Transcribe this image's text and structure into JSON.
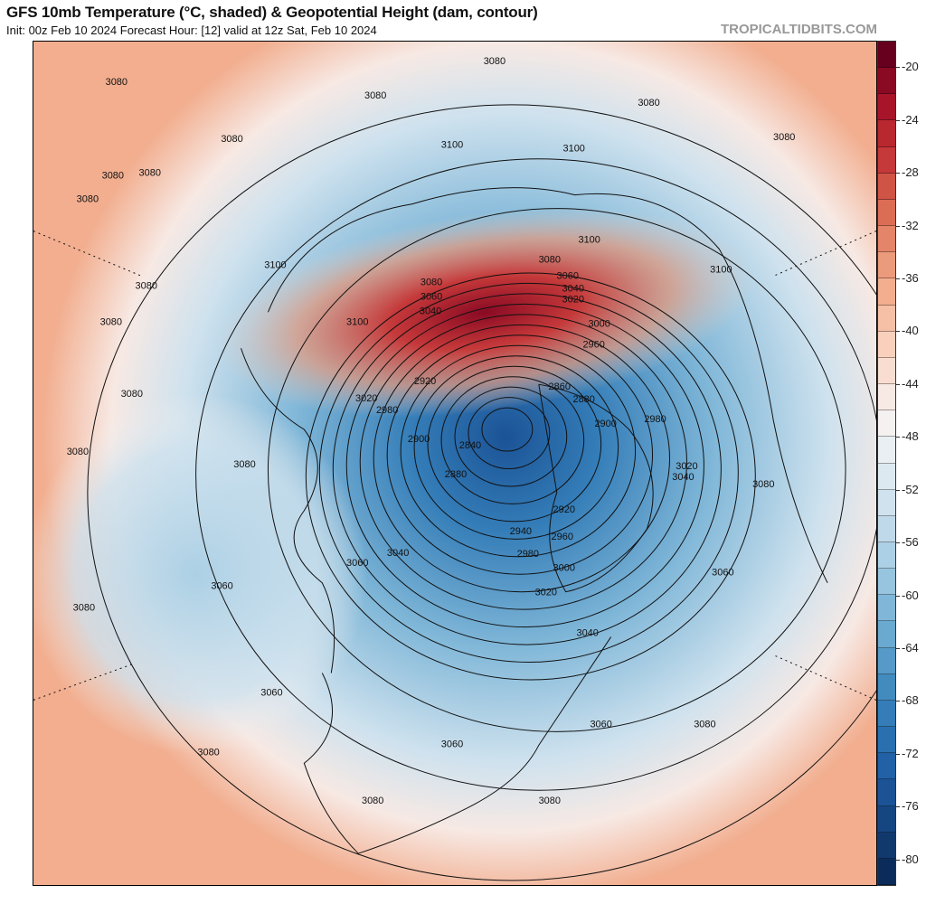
{
  "header": {
    "title": "GFS 10mb Temperature (°C, shaded) & Geopotential Height (dam, contour)",
    "subtitle": "Init: 00z Feb 10 2024   Forecast Hour: [12]   valid at 12z Sat, Feb 10 2024",
    "brand": "TROPICALTIDBITS.COM"
  },
  "colorbar": {
    "unit": "°C",
    "range": [
      -82,
      -18
    ],
    "step": 2,
    "ticks": [
      "-20",
      "-24",
      "-28",
      "-32",
      "-36",
      "-40",
      "-44",
      "-48",
      "-52",
      "-56",
      "-60",
      "-64",
      "-68",
      "-72",
      "-76",
      "-80"
    ],
    "colors_top_to_bottom": [
      "#67001f",
      "#8a0a23",
      "#a8152a",
      "#b9272f",
      "#c5393a",
      "#d05446",
      "#dc6d55",
      "#e48468",
      "#eb9a7b",
      "#f2ae8f",
      "#f6c0a6",
      "#f8d0bb",
      "#f8ddd0",
      "#f7e9e4",
      "#f4f1f0",
      "#e9eff3",
      "#dde9f1",
      "#cfe2ee",
      "#c0d9ea",
      "#acd0e5",
      "#97c5df",
      "#80b7d8",
      "#6aa9d0",
      "#559ac8",
      "#428bbf",
      "#347db8",
      "#2a6faf",
      "#2261a6",
      "#1b5396",
      "#164682",
      "#11396e",
      "#0b2c5a"
    ]
  },
  "map": {
    "low_center_label": "2840",
    "contour_labels": [
      "3080",
      "3080",
      "3080",
      "3080",
      "3080",
      "3080",
      "3080",
      "3080",
      "3080",
      "3080",
      "3080",
      "3080",
      "3080",
      "3080",
      "3080",
      "3080",
      "3080",
      "3080",
      "3080",
      "3080",
      "3080",
      "3080",
      "3100",
      "3100",
      "3100",
      "3100",
      "3100",
      "3100",
      "3060",
      "3060",
      "3060",
      "3060",
      "3060",
      "3060",
      "3060",
      "3060",
      "3040",
      "3040",
      "3040",
      "3040",
      "3040",
      "3020",
      "3020",
      "3020",
      "3020",
      "3000",
      "3000",
      "2980",
      "2980",
      "2980",
      "2960",
      "2960",
      "2940",
      "2920",
      "2920",
      "2900",
      "2900",
      "2880",
      "2880",
      "2860",
      "2840"
    ]
  }
}
